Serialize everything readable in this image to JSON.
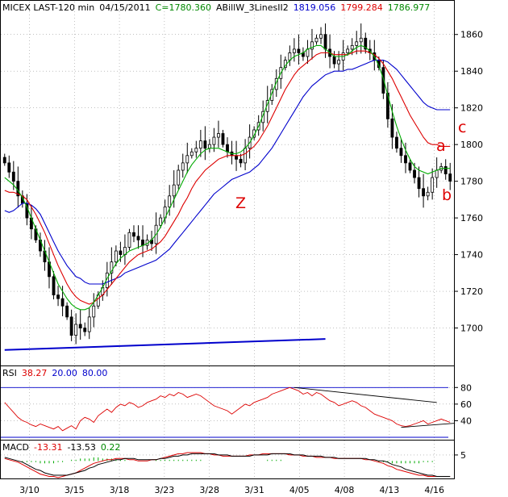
{
  "header": {
    "symbol": "MICEX LAST-120 min",
    "date": "04/15/2011",
    "close": "C=1780.360",
    "indicator": "ABillW_3LinesII2",
    "v1": "1819.056",
    "v2": "1799.284",
    "v3": "1786.977"
  },
  "rsi_panel": {
    "label": "RSI",
    "value": "38.27",
    "p1": "20.00",
    "p2": "80.00"
  },
  "macd_panel": {
    "label": "MACD",
    "v1": "-13.31",
    "v2": "-13.53",
    "v3": "0.22"
  },
  "annotations": {
    "z": "Z",
    "a": "a",
    "b": "b",
    "c": "c"
  },
  "colors": {
    "blue": "#0000cc",
    "red": "#dd0000",
    "green": "#00aa00",
    "candle": "#000000",
    "grid": "#9a9a9a"
  },
  "chart_data": [
    {
      "type": "candlestick",
      "panel": "price",
      "ylim": [
        1680,
        1870
      ],
      "y_ticks": [
        1700,
        1720,
        1740,
        1760,
        1780,
        1800,
        1820,
        1840,
        1860
      ],
      "x_tick_labels": [
        "3/10",
        "3/15",
        "3/18",
        "3/23",
        "3/28",
        "3/31",
        "4/05",
        "4/08",
        "4/13",
        "4/16"
      ],
      "close": [
        1790,
        1785,
        1780,
        1772,
        1768,
        1760,
        1754,
        1748,
        1742,
        1736,
        1728,
        1718,
        1716,
        1712,
        1706,
        1696,
        1702,
        1700,
        1698,
        1706,
        1712,
        1718,
        1722,
        1730,
        1736,
        1742,
        1740,
        1744,
        1752,
        1750,
        1748,
        1745,
        1748,
        1746,
        1756,
        1760,
        1766,
        1772,
        1778,
        1786,
        1790,
        1794,
        1796,
        1798,
        1802,
        1798,
        1800,
        1804,
        1806,
        1800,
        1796,
        1794,
        1792,
        1790,
        1798,
        1804,
        1808,
        1812,
        1818,
        1824,
        1830,
        1836,
        1842,
        1846,
        1850,
        1852,
        1850,
        1848,
        1852,
        1856,
        1858,
        1860,
        1852,
        1848,
        1844,
        1846,
        1850,
        1852,
        1854,
        1856,
        1858,
        1852,
        1850,
        1846,
        1842,
        1828,
        1814,
        1804,
        1798,
        1794,
        1790,
        1786,
        1782,
        1776,
        1772,
        1774,
        1782,
        1786,
        1788,
        1784,
        1780
      ],
      "series": [
        {
          "name": "1819.056",
          "values": [
            1764,
            1763,
            1764,
            1766,
            1768,
            1768,
            1767,
            1765,
            1762,
            1757,
            1752,
            1747,
            1742,
            1738,
            1734,
            1731,
            1728,
            1727,
            1725,
            1724,
            1724,
            1724,
            1724,
            1725,
            1726,
            1727,
            1728,
            1730,
            1731,
            1732,
            1733,
            1734,
            1735,
            1736,
            1737,
            1739,
            1741,
            1743,
            1746,
            1749,
            1752,
            1755,
            1758,
            1761,
            1764,
            1767,
            1770,
            1773,
            1775,
            1777,
            1779,
            1781,
            1782,
            1783,
            1784,
            1785,
            1787,
            1789,
            1792,
            1795,
            1798,
            1802,
            1806,
            1810,
            1814,
            1818,
            1822,
            1826,
            1829,
            1832,
            1834,
            1836,
            1838,
            1839,
            1840,
            1840,
            1840,
            1841,
            1841,
            1842,
            1843,
            1844,
            1845,
            1846,
            1846,
            1846,
            1845,
            1843,
            1841,
            1838,
            1835,
            1832,
            1829,
            1826,
            1823,
            1821,
            1820,
            1819,
            1819,
            1819,
            1819
          ]
        },
        {
          "name": "1799.284",
          "values": [
            1775,
            1774,
            1774,
            1773,
            1772,
            1770,
            1766,
            1762,
            1757,
            1752,
            1746,
            1740,
            1734,
            1729,
            1724,
            1720,
            1717,
            1715,
            1714,
            1713,
            1714,
            1716,
            1718,
            1721,
            1724,
            1727,
            1730,
            1733,
            1736,
            1738,
            1740,
            1741,
            1742,
            1743,
            1745,
            1747,
            1750,
            1754,
            1758,
            1762,
            1767,
            1771,
            1776,
            1780,
            1783,
            1786,
            1788,
            1790,
            1792,
            1793,
            1794,
            1794,
            1794,
            1794,
            1795,
            1797,
            1799,
            1802,
            1806,
            1810,
            1815,
            1820,
            1825,
            1830,
            1834,
            1838,
            1841,
            1843,
            1845,
            1847,
            1849,
            1850,
            1850,
            1850,
            1849,
            1849,
            1849,
            1849,
            1850,
            1851,
            1851,
            1851,
            1850,
            1849,
            1847,
            1844,
            1840,
            1836,
            1831,
            1826,
            1821,
            1816,
            1812,
            1808,
            1804,
            1801,
            1800,
            1800,
            1799,
            1799,
            1799
          ]
        },
        {
          "name": "1786.977",
          "values": [
            1782,
            1780,
            1778,
            1775,
            1771,
            1766,
            1760,
            1754,
            1748,
            1742,
            1736,
            1730,
            1724,
            1720,
            1716,
            1713,
            1711,
            1710,
            1710,
            1711,
            1714,
            1718,
            1722,
            1727,
            1731,
            1735,
            1738,
            1740,
            1742,
            1743,
            1744,
            1745,
            1746,
            1748,
            1751,
            1755,
            1760,
            1765,
            1770,
            1775,
            1780,
            1785,
            1789,
            1792,
            1795,
            1797,
            1798,
            1798,
            1798,
            1797,
            1796,
            1795,
            1795,
            1796,
            1798,
            1801,
            1805,
            1810,
            1816,
            1822,
            1828,
            1834,
            1839,
            1843,
            1846,
            1848,
            1849,
            1850,
            1852,
            1853,
            1854,
            1854,
            1852,
            1850,
            1848,
            1848,
            1848,
            1849,
            1851,
            1853,
            1854,
            1853,
            1851,
            1848,
            1843,
            1836,
            1827,
            1818,
            1810,
            1803,
            1797,
            1792,
            1788,
            1786,
            1785,
            1784,
            1785,
            1786,
            1787,
            1787,
            1787
          ]
        }
      ],
      "trendline_start": 1688,
      "trendline_end": 1694
    },
    {
      "type": "line",
      "panel": "rsi",
      "title": "RSI",
      "ylim": [
        20,
        90
      ],
      "y_ticks": [
        40,
        60,
        80
      ],
      "levels": [
        20,
        80
      ],
      "series": [
        {
          "name": "38.27",
          "values": [
            62,
            56,
            50,
            44,
            40,
            38,
            35,
            33,
            36,
            34,
            32,
            30,
            33,
            28,
            31,
            34,
            30,
            40,
            44,
            42,
            38,
            46,
            50,
            54,
            50,
            56,
            60,
            58,
            62,
            60,
            56,
            58,
            62,
            64,
            66,
            70,
            68,
            72,
            70,
            74,
            72,
            68,
            70,
            72,
            70,
            66,
            62,
            58,
            56,
            54,
            52,
            48,
            52,
            56,
            60,
            58,
            62,
            64,
            66,
            68,
            72,
            74,
            76,
            78,
            80,
            78,
            76,
            72,
            74,
            70,
            74,
            72,
            68,
            64,
            62,
            58,
            60,
            62,
            64,
            62,
            58,
            56,
            52,
            48,
            46,
            44,
            42,
            40,
            36,
            34,
            33,
            34,
            36,
            38,
            40,
            36,
            38,
            40,
            42,
            40,
            38
          ]
        }
      ]
    },
    {
      "type": "line",
      "panel": "macd",
      "title": "MACD",
      "ylim": [
        -14,
        9
      ],
      "y_ticks": [
        5
      ],
      "series": [
        {
          "name": "-13.31",
          "values": [
            2,
            1,
            0,
            -1,
            -3,
            -5,
            -7,
            -9,
            -11,
            -12,
            -13,
            -13,
            -14,
            -13,
            -12,
            -11,
            -10,
            -8,
            -6,
            -4,
            -2,
            -1,
            0,
            1,
            1,
            2,
            2,
            2,
            1,
            1,
            0,
            0,
            0,
            1,
            1,
            2,
            3,
            4,
            5,
            6,
            6,
            7,
            7,
            7,
            7,
            6,
            6,
            5,
            5,
            4,
            4,
            4,
            4,
            4,
            4,
            5,
            5,
            5,
            6,
            6,
            6,
            6,
            6,
            6,
            5,
            5,
            5,
            4,
            4,
            4,
            3,
            3,
            3,
            3,
            2,
            2,
            2,
            2,
            2,
            2,
            2,
            1,
            1,
            0,
            -1,
            -2,
            -4,
            -5,
            -7,
            -8,
            -9,
            -10,
            -11,
            -12,
            -12,
            -13,
            -13,
            -13,
            -13,
            -13,
            -13
          ]
        },
        {
          "name": "-13.53",
          "values": [
            3,
            2,
            1,
            0,
            -1,
            -3,
            -5,
            -7,
            -8,
            -10,
            -11,
            -12,
            -12,
            -12,
            -12,
            -11,
            -10,
            -9,
            -8,
            -6,
            -5,
            -3,
            -2,
            -1,
            0,
            1,
            1,
            2,
            2,
            2,
            1,
            1,
            1,
            1,
            1,
            2,
            2,
            3,
            4,
            4,
            5,
            5,
            6,
            6,
            6,
            6,
            6,
            6,
            5,
            5,
            5,
            4,
            4,
            4,
            4,
            4,
            5,
            5,
            5,
            5,
            6,
            6,
            6,
            6,
            6,
            5,
            5,
            5,
            4,
            4,
            4,
            4,
            3,
            3,
            3,
            2,
            2,
            2,
            2,
            2,
            2,
            2,
            1,
            1,
            0,
            0,
            -1,
            -3,
            -4,
            -5,
            -7,
            -8,
            -9,
            -10,
            -11,
            -12,
            -12,
            -13,
            -13,
            -13,
            -13
          ]
        },
        {
          "name": "0.22",
          "values": [
            0,
            0,
            0,
            0,
            -1,
            -1,
            -1,
            -1,
            -2,
            -2,
            -2,
            -2,
            -1,
            -1,
            0,
            1,
            1,
            2,
            2,
            2,
            3,
            3,
            2,
            2,
            2,
            1,
            1,
            1,
            0,
            0,
            0,
            0,
            0,
            0,
            1,
            1,
            1,
            1,
            1,
            1,
            1,
            1,
            1,
            1,
            1,
            0,
            0,
            0,
            0,
            0,
            0,
            0,
            0,
            0,
            0,
            0,
            0,
            0,
            0,
            1,
            1,
            1,
            1,
            0,
            0,
            0,
            0,
            0,
            0,
            0,
            0,
            0,
            0,
            0,
            0,
            0,
            0,
            0,
            0,
            0,
            0,
            0,
            0,
            0,
            -1,
            -1,
            -1,
            -2,
            -2,
            -2,
            -2,
            -2,
            -2,
            -2,
            -1,
            -1,
            -1,
            0,
            0,
            0,
            0
          ]
        }
      ]
    }
  ]
}
